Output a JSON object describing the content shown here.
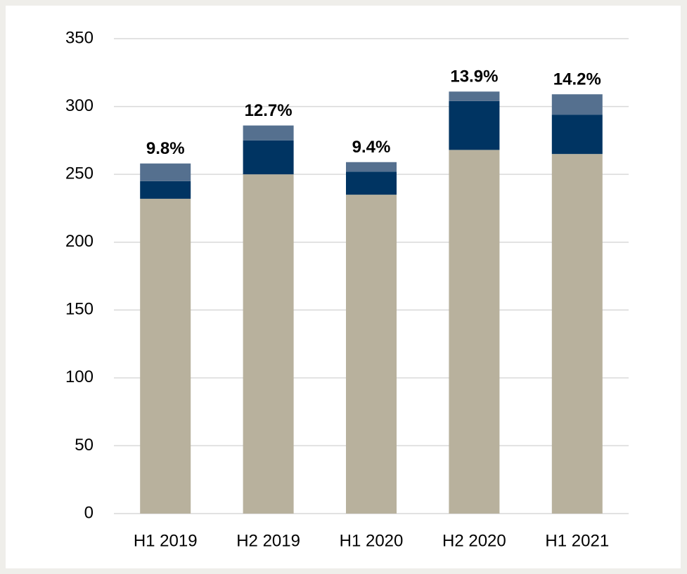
{
  "chart_data": {
    "type": "stacked_bar",
    "categories": [
      "H1 2019",
      "H2 2019",
      "H1 2020",
      "H2 2020",
      "H1 2021"
    ],
    "series": [
      {
        "color": "#b8b19d",
        "values": [
          232,
          250,
          235,
          268,
          265
        ]
      },
      {
        "color": "#003462",
        "values": [
          13,
          25,
          17,
          36,
          29
        ]
      },
      {
        "color": "#55708f",
        "values": [
          13,
          11,
          7,
          7,
          15
        ]
      }
    ],
    "annotations": [
      "9.8%",
      "12.7%",
      "9.4%",
      "13.9%",
      "14.2%"
    ],
    "ylim": [
      0,
      350
    ],
    "yticks": [
      0,
      50,
      100,
      150,
      200,
      250,
      300,
      350
    ],
    "grid": true
  }
}
